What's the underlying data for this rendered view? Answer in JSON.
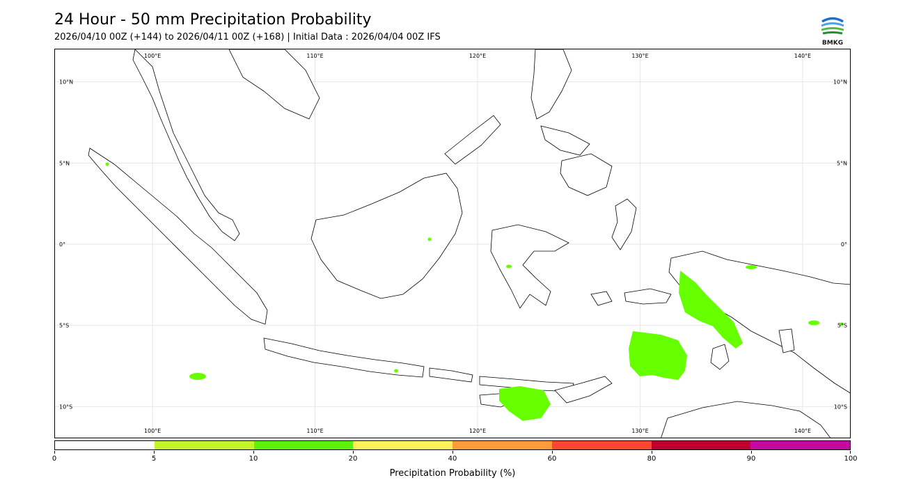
{
  "header": {
    "title": "24 Hour - 50 mm Precipitation Probability",
    "subtitle": "2026/04/10 00Z (+144) to 2026/04/11 00Z (+168) | Initial Data : 2026/04/04 00Z IFS"
  },
  "logo": {
    "text": "BMKG",
    "icon": "bmkg-logo-icon",
    "colors": [
      "#1f6fd1",
      "#4aa3e8",
      "#55b947",
      "#2a8a2e"
    ]
  },
  "map": {
    "lon_labels": [
      "100°E",
      "110°E",
      "120°E",
      "130°E",
      "140°E"
    ],
    "lat_labels": [
      "10°N",
      "5°N",
      "0°",
      "5°S",
      "10°S"
    ],
    "lon_values": [
      100,
      110,
      120,
      130,
      140
    ],
    "lat_values": [
      10,
      5,
      0,
      -5,
      -10
    ],
    "lon_range": [
      94,
      143
    ],
    "lat_range": [
      -12,
      12
    ],
    "grid": true,
    "land_outline_color": "#000000",
    "rain_color": "#66ff00"
  },
  "colorbar": {
    "title": "Precipitation Probability (%)",
    "ticks": [
      "0",
      "5",
      "10",
      "20",
      "40",
      "60",
      "80",
      "90",
      "100"
    ],
    "colors": [
      "#ffffff",
      "#c3f52a",
      "#5df20b",
      "#fff159",
      "#fe9a3c",
      "#fe4632",
      "#be0030",
      "#c40aa0"
    ]
  }
}
